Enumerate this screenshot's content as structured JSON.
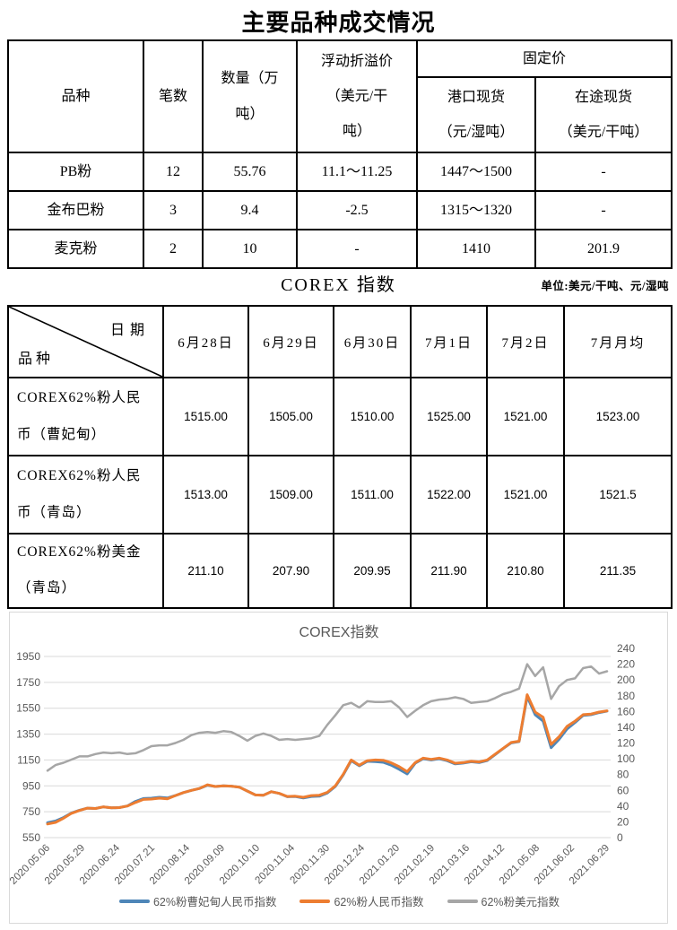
{
  "page": {
    "title": "主要品种成交情况"
  },
  "table1": {
    "header": {
      "variety": "品种",
      "count": "笔数",
      "quantity": "数量（万\n吨）",
      "float_premium": "浮动折溢价\n（美元/干\n吨）",
      "fixed_price": "固定价",
      "port_spot": "港口现货\n（元/湿吨）",
      "transit_spot": "在途现货\n（美元/干吨）"
    },
    "rows": [
      [
        "PB粉",
        "12",
        "55.76",
        "11.1～11.25",
        "1447～1500",
        "-"
      ],
      [
        "金布巴粉",
        "3",
        "9.4",
        "-2.5",
        "1315～1320",
        "-"
      ],
      [
        "麦克粉",
        "2",
        "10",
        "-",
        "1410",
        "201.9"
      ]
    ]
  },
  "corex_section": {
    "title": "COREX 指数",
    "unit_note": "单位:美元/干吨、元/湿吨"
  },
  "corex_table": {
    "corner": {
      "top_right": "日期",
      "bottom_left": "品种"
    },
    "date_headers": [
      "6月28日",
      "6月29日",
      "6月30日",
      "7月1日",
      "7月2日",
      "7月月均"
    ],
    "rows": [
      {
        "label": "COREX62%粉人民\n币（曹妃甸）",
        "values": [
          "1515.00",
          "1505.00",
          "1510.00",
          "1525.00",
          "1521.00",
          "1523.00"
        ]
      },
      {
        "label": "COREX62%粉人民\n币（青岛）",
        "values": [
          "1513.00",
          "1509.00",
          "1511.00",
          "1522.00",
          "1521.00",
          "1521.5"
        ]
      },
      {
        "label": "COREX62%粉美金\n（青岛）",
        "values": [
          "211.10",
          "207.90",
          "209.95",
          "211.90",
          "210.80",
          "211.35"
        ]
      }
    ]
  },
  "chart_data": {
    "type": "line",
    "title": "COREX指数",
    "grid": true,
    "legend_position": "bottom",
    "left_axis": {
      "min": 550,
      "max": 1950,
      "step": 200,
      "tick_labels": [
        "550",
        "750",
        "950",
        "1150",
        "1350",
        "1550",
        "1750",
        "1950"
      ]
    },
    "right_axis": {
      "min": 0,
      "max": 240,
      "step": 20,
      "tick_labels": [
        "0",
        "20",
        "40",
        "60",
        "80",
        "100",
        "120",
        "140",
        "160",
        "180",
        "200",
        "220",
        "240"
      ]
    },
    "x_labels": [
      "2020.05.06",
      "2020.05.29",
      "2020.06.24",
      "2020.07.21",
      "2020.08.14",
      "2020.09.09",
      "2020.10.10",
      "2020.11.04",
      "2020.11.30",
      "2020.12.24",
      "2021.01.20",
      "2021.02.19",
      "2021.03.16",
      "2021.04.12",
      "2021.05.08",
      "2021.06.02",
      "2021.06.29"
    ],
    "sampling_note": "values evenly spaced from 2020.05.06 to 2021.06.29",
    "series": [
      {
        "name": "62%粉曹妃甸人民币指数",
        "color": "#4e86b8",
        "axis": "left",
        "width": 3,
        "values": [
          665,
          678,
          705,
          740,
          762,
          778,
          775,
          788,
          780,
          782,
          795,
          830,
          852,
          855,
          862,
          856,
          875,
          898,
          915,
          930,
          955,
          945,
          950,
          948,
          940,
          910,
          880,
          878,
          905,
          892,
          866,
          868,
          856,
          868,
          870,
          895,
          945,
          1035,
          1145,
          1105,
          1140,
          1138,
          1132,
          1110,
          1078,
          1042,
          1125,
          1160,
          1150,
          1160,
          1145,
          1120,
          1126,
          1136,
          1130,
          1146,
          1192,
          1238,
          1282,
          1292,
          1640,
          1500,
          1450,
          1245,
          1310,
          1390,
          1440,
          1495,
          1500,
          1516,
          1528
        ]
      },
      {
        "name": "62%粉人民币指数",
        "color": "#ed7d31",
        "axis": "left",
        "width": 3,
        "values": [
          655,
          668,
          700,
          738,
          760,
          778,
          775,
          788,
          780,
          782,
          795,
          822,
          845,
          848,
          855,
          850,
          875,
          898,
          915,
          930,
          958,
          945,
          950,
          948,
          940,
          910,
          880,
          878,
          905,
          892,
          868,
          870,
          862,
          875,
          878,
          900,
          950,
          1040,
          1150,
          1110,
          1145,
          1150,
          1148,
          1128,
          1098,
          1060,
          1130,
          1165,
          1155,
          1165,
          1150,
          1125,
          1130,
          1140,
          1135,
          1150,
          1195,
          1240,
          1285,
          1295,
          1655,
          1520,
          1480,
          1270,
          1330,
          1410,
          1450,
          1500,
          1505,
          1520,
          1530
        ]
      },
      {
        "name": "62%粉美元指数",
        "color": "#a6a6a6",
        "axis": "right",
        "width": 2.5,
        "values": [
          85,
          92,
          95,
          99,
          103,
          103,
          106,
          108,
          107,
          108,
          106,
          107,
          111,
          116,
          117,
          117,
          120,
          124,
          130,
          133,
          134,
          133,
          135,
          134,
          129,
          123,
          129,
          132,
          129,
          124,
          125,
          124,
          125,
          126,
          129,
          143,
          155,
          168,
          171,
          165,
          173,
          172,
          172,
          173,
          165,
          153,
          161,
          168,
          173,
          175,
          176,
          178,
          176,
          171,
          172,
          173,
          177,
          182,
          185,
          189,
          220,
          205,
          216,
          176,
          192,
          200,
          202,
          215,
          217,
          208,
          211
        ]
      }
    ]
  }
}
